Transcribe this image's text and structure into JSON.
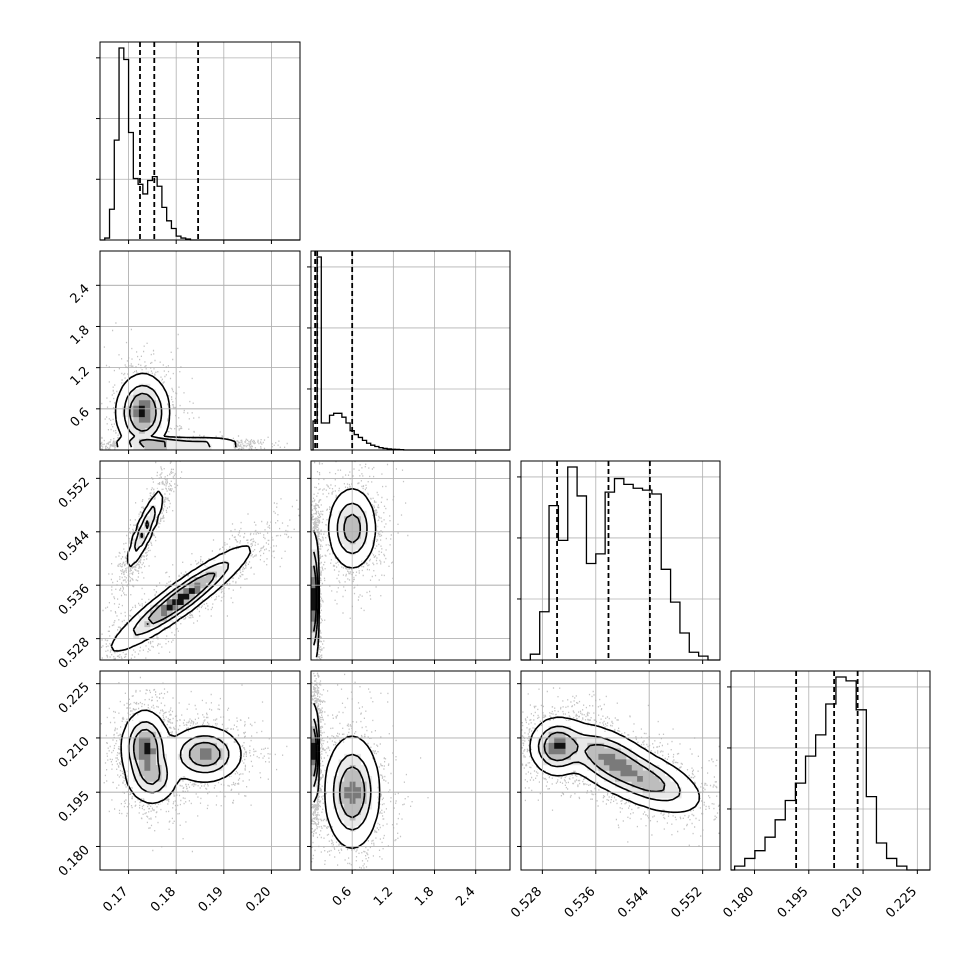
{
  "chart_data": {
    "type": "corner",
    "parameters": 4,
    "grid": true,
    "axes": [
      {
        "range": [
          0.164,
          0.206
        ],
        "ticks": [
          "0.17",
          "0.18",
          "0.19",
          "0.20"
        ],
        "tick_values": [
          0.17,
          0.18,
          0.19,
          0.2
        ]
      },
      {
        "range": [
          0.0,
          2.9
        ],
        "ticks": [
          "0.6",
          "1.2",
          "1.8",
          "2.4"
        ],
        "tick_values": [
          0.6,
          1.2,
          1.8,
          2.4
        ]
      },
      {
        "range": [
          0.5248,
          0.5546
        ],
        "ticks": [
          "0.528",
          "0.536",
          "0.544",
          "0.552"
        ],
        "tick_values": [
          0.528,
          0.536,
          0.544,
          0.552
        ]
      },
      {
        "range": [
          0.1735,
          0.2285
        ],
        "ticks": [
          "0.180",
          "0.195",
          "0.210",
          "0.225"
        ],
        "tick_values": [
          0.18,
          0.195,
          0.21,
          0.225
        ]
      }
    ],
    "quantiles": [
      [
        0.1724,
        0.1754,
        0.1846
      ],
      [
        0.06,
        0.09,
        0.6
      ],
      [
        0.5302,
        0.5379,
        0.5441
      ],
      [
        0.1915,
        0.202,
        0.2085
      ]
    ],
    "histograms": [
      {
        "bin_width": 0.001,
        "start": 0.165,
        "counts": [
          0.01,
          0.16,
          0.52,
          1.0,
          0.94,
          0.56,
          0.32,
          0.29,
          0.24,
          0.31,
          0.33,
          0.28,
          0.17,
          0.1,
          0.06,
          0.02,
          0.01,
          0.005
        ]
      },
      {
        "bin_width": 0.06,
        "start": 0.03,
        "counts": [
          0.15,
          1.0,
          0.14,
          0.14,
          0.18,
          0.19,
          0.19,
          0.17,
          0.14,
          0.1,
          0.08,
          0.065,
          0.05,
          0.035,
          0.025,
          0.018,
          0.012,
          0.008,
          0.006,
          0.004,
          0.003,
          0.002
        ]
      },
      {
        "bin_width": 0.0014,
        "start": 0.5262,
        "counts": [
          0.03,
          0.25,
          0.8,
          0.62,
          1.0,
          0.85,
          0.5,
          0.55,
          0.87,
          0.94,
          0.91,
          0.89,
          0.88,
          0.86,
          0.47,
          0.3,
          0.14,
          0.04,
          0.02
        ]
      },
      {
        "bin_width": 0.0028,
        "start": 0.1745,
        "counts": [
          0.02,
          0.06,
          0.1,
          0.17,
          0.26,
          0.36,
          0.45,
          0.59,
          0.7,
          0.86,
          1.0,
          0.98,
          0.83,
          0.38,
          0.14,
          0.06,
          0.02
        ]
      }
    ],
    "pair_modes": {
      "1_0": [
        {
          "x": 0.173,
          "y": 0.55,
          "sx": 0.0025,
          "sy": 0.25,
          "w": 0.35
        },
        {
          "x": 0.176,
          "y": 0.08,
          "sx": 0.004,
          "sy": 0.03,
          "w": 0.45
        },
        {
          "x": 0.186,
          "y": 0.08,
          "sx": 0.004,
          "sy": 0.03,
          "w": 0.25
        }
      ],
      "2_0": [
        {
          "x": 0.1735,
          "y": 0.5445,
          "sx": 0.0018,
          "sy": 0.0028,
          "w": 0.35,
          "rho": 0.88
        },
        {
          "x": 0.181,
          "y": 0.534,
          "sx": 0.0065,
          "sy": 0.0035,
          "w": 0.55,
          "rho": 0.93
        }
      ],
      "2_1": [
        {
          "x": 0.6,
          "y": 0.5445,
          "sx": 0.16,
          "sy": 0.0028,
          "w": 0.35
        },
        {
          "x": 0.06,
          "y": 0.534,
          "sx": 0.025,
          "sy": 0.0045,
          "w": 0.65
        }
      ],
      "3_0": [
        {
          "x": 0.1735,
          "y": 0.2075,
          "sx": 0.0022,
          "sy": 0.0045,
          "w": 0.35
        },
        {
          "x": 0.175,
          "y": 0.199,
          "sx": 0.0025,
          "sy": 0.0035,
          "w": 0.2
        },
        {
          "x": 0.186,
          "y": 0.2055,
          "sx": 0.0035,
          "sy": 0.0035,
          "w": 0.3
        }
      ],
      "3_1": [
        {
          "x": 0.06,
          "y": 0.206,
          "sx": 0.025,
          "sy": 0.006,
          "w": 0.6
        },
        {
          "x": 0.6,
          "y": 0.195,
          "sx": 0.18,
          "sy": 0.007,
          "w": 0.4
        }
      ],
      "3_2": [
        {
          "x": 0.5302,
          "y": 0.2075,
          "sx": 0.0018,
          "sy": 0.0035,
          "w": 0.4
        },
        {
          "x": 0.538,
          "y": 0.204,
          "sx": 0.0035,
          "sy": 0.0045,
          "w": 0.35,
          "rho": -0.55
        },
        {
          "x": 0.5445,
          "y": 0.1975,
          "sx": 0.0035,
          "sy": 0.004,
          "w": 0.25,
          "rho": -0.5
        }
      ]
    }
  }
}
